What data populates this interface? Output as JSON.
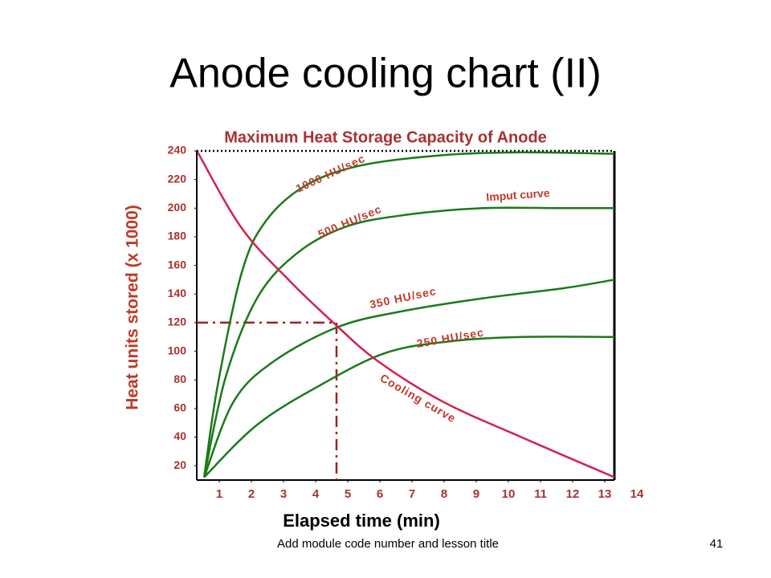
{
  "chart_data": {
    "type": "line",
    "title": "Anode cooling chart (II)",
    "subtitle": "Maximum Heat Storage Capacity of Anode",
    "x_label": "Elapsed time (min)",
    "y_label": "Heat units stored (x 1000)",
    "annotation": "Imput curve",
    "xlim": [
      0.3,
      13.3
    ],
    "ylim": [
      10,
      240
    ],
    "xticks": [
      1,
      2,
      3,
      4,
      5,
      6,
      7,
      8,
      9,
      10,
      11,
      12,
      13,
      14
    ],
    "yticks": [
      20,
      40,
      60,
      80,
      100,
      120,
      140,
      160,
      180,
      200,
      220,
      240
    ],
    "max_capacity": 240,
    "reference_point": {
      "x": 4.65,
      "y": 120
    },
    "series": [
      {
        "name": "1000 HU/sec",
        "color": "#1a7a1a",
        "x": [
          0.53,
          0.95,
          1.7,
          2.45,
          3.7,
          5.44,
          7.94,
          10.4,
          13.3
        ],
        "values": [
          12,
          76,
          155,
          191,
          216,
          230,
          237,
          239,
          238
        ]
      },
      {
        "name": "500 HU/sec",
        "color": "#1a7a1a",
        "x": [
          0.53,
          1.2,
          2.2,
          3.45,
          4.94,
          6.7,
          9.2,
          11.7,
          13.3
        ],
        "values": [
          12,
          82,
          138,
          169,
          187,
          195,
          200,
          200,
          200
        ]
      },
      {
        "name": "350 HU/sec",
        "color": "#1a7a1a",
        "x": [
          0.53,
          1.45,
          2.7,
          4.7,
          6.7,
          9.2,
          11.7,
          13.3
        ],
        "values": [
          12,
          65,
          93,
          117,
          128,
          137,
          144,
          150
        ]
      },
      {
        "name": "250 HU/sec",
        "color": "#1a7a1a",
        "x": [
          0.53,
          2.2,
          4.2,
          6.2,
          8.2,
          10.4,
          13.3
        ],
        "values": [
          12,
          49,
          77,
          99,
          107,
          110,
          110
        ]
      },
      {
        "name": "Cooling curve",
        "color": "#d42050",
        "x": [
          0.33,
          1.7,
          3.2,
          4.6,
          5.94,
          7.94,
          10.4,
          13.3
        ],
        "values": [
          239,
          186,
          149,
          119,
          93,
          65,
          40,
          12
        ]
      }
    ]
  },
  "footer": {
    "text": "Add module code number and lesson title",
    "page": "41"
  }
}
